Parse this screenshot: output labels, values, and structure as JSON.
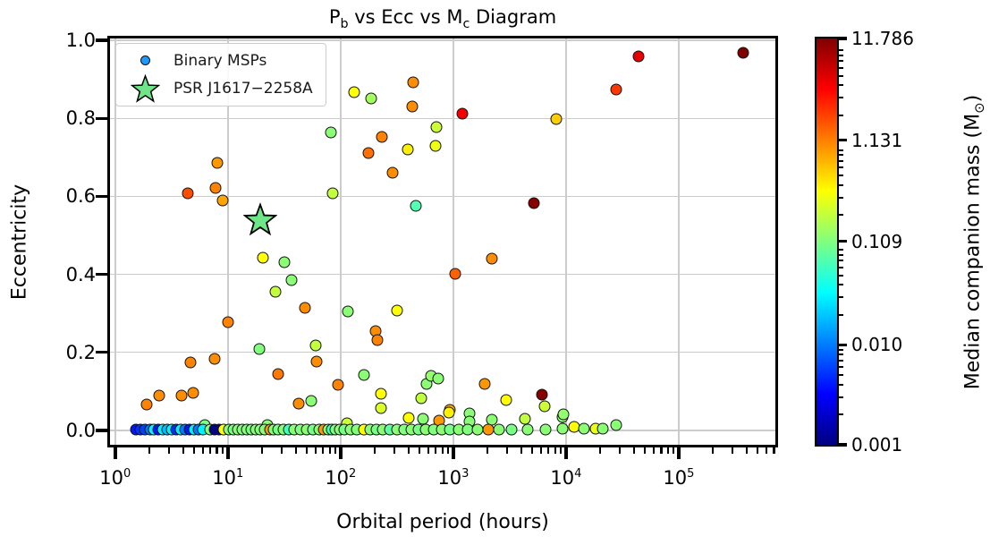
{
  "figure": {
    "background": "#ffffff"
  },
  "chart_data": {
    "type": "scatter",
    "title_parts": [
      "P",
      "b",
      " vs Ecc vs M",
      "c",
      " Diagram"
    ],
    "title_plain": "P_b vs Ecc vs M_c Diagram",
    "xlabel": "Orbital period (hours)",
    "ylabel": "Eccentricity",
    "x_scale": "log",
    "xlim": [
      0.9,
      720000
    ],
    "ylim": [
      -0.037,
      1.005
    ],
    "x_tick_exponents": [
      0,
      1,
      2,
      3,
      4,
      5
    ],
    "y_ticks": [
      0.0,
      0.2,
      0.4,
      0.6,
      0.8,
      1.0
    ],
    "grid": true,
    "legend": {
      "position": "upper-left",
      "items": [
        {
          "label": "Binary MSPs",
          "marker": "circle",
          "color": "#1e9aff"
        },
        {
          "label": "PSR J1617−2258A",
          "marker": "star",
          "color": "#6ee687"
        }
      ]
    },
    "colorbar": {
      "label_prefix": "Median companion mass (M",
      "label_sub": "⊙",
      "label_suffix": ")",
      "scale": "log",
      "vmin": 0.001,
      "vmax": 11.786,
      "tick_values": [
        11.786,
        1.131,
        0.109,
        0.01,
        0.001
      ],
      "tick_labels": [
        "11.786",
        "1.131",
        "0.109",
        "0.010",
        "0.001"
      ],
      "colormap": "jet",
      "jet_stops": [
        [
          0.0,
          [
            0,
            0,
            128
          ]
        ],
        [
          0.125,
          [
            0,
            0,
            255
          ]
        ],
        [
          0.375,
          [
            0,
            255,
            255
          ]
        ],
        [
          0.625,
          [
            255,
            255,
            0
          ]
        ],
        [
          0.875,
          [
            255,
            0,
            0
          ]
        ],
        [
          1.0,
          [
            128,
            0,
            0
          ]
        ]
      ]
    },
    "star": {
      "label": "PSR J1617−2258A",
      "p_hours": 19.3,
      "ecc": 0.541,
      "color": "#6ee687"
    },
    "points_format": [
      "orbital_period_hours",
      "eccentricity",
      "median_companion_mass_msun"
    ],
    "points": [
      [
        440,
        0.892,
        1.0
      ],
      [
        131,
        0.867,
        0.35
      ],
      [
        186,
        0.851,
        0.15
      ],
      [
        434,
        0.83,
        1.0
      ],
      [
        1200,
        0.812,
        4.0
      ],
      [
        8180,
        0.798,
        0.55
      ],
      [
        706,
        0.778,
        0.22
      ],
      [
        82,
        0.764,
        0.12
      ],
      [
        232,
        0.752,
        1.1
      ],
      [
        394,
        0.72,
        0.4
      ],
      [
        693,
        0.729,
        0.3
      ],
      [
        176,
        0.711,
        1.3
      ],
      [
        288,
        0.661,
        1.0
      ],
      [
        8.0,
        0.686,
        0.9
      ],
      [
        7.8,
        0.622,
        1.1
      ],
      [
        4.4,
        0.608,
        1.8
      ],
      [
        9.0,
        0.589,
        0.8
      ],
      [
        85,
        0.608,
        0.2
      ],
      [
        464,
        0.576,
        0.07
      ],
      [
        5180,
        0.583,
        11.0
      ],
      [
        43900,
        0.959,
        4.5
      ],
      [
        372000,
        0.968,
        11.8
      ],
      [
        27800,
        0.874,
        2.2
      ],
      [
        20.4,
        0.443,
        0.35
      ],
      [
        31.6,
        0.431,
        0.12
      ],
      [
        2190,
        0.44,
        1.0
      ],
      [
        1040,
        0.401,
        1.5
      ],
      [
        36.6,
        0.385,
        0.12
      ],
      [
        26.3,
        0.356,
        0.2
      ],
      [
        48.2,
        0.314,
        1.0
      ],
      [
        116,
        0.305,
        0.12
      ],
      [
        316,
        0.307,
        0.35
      ],
      [
        10.0,
        0.278,
        1.1
      ],
      [
        204,
        0.255,
        1.0
      ],
      [
        213,
        0.232,
        1.1
      ],
      [
        19.0,
        0.209,
        0.11
      ],
      [
        60,
        0.218,
        0.2
      ],
      [
        4.7,
        0.174,
        1.1
      ],
      [
        7.6,
        0.183,
        1.0
      ],
      [
        61,
        0.177,
        1.0
      ],
      [
        27.8,
        0.144,
        1.2
      ],
      [
        160,
        0.142,
        0.12
      ],
      [
        2.45,
        0.089,
        1.0
      ],
      [
        3.9,
        0.089,
        1.0
      ],
      [
        4.9,
        0.096,
        1.0
      ],
      [
        1.9,
        0.067,
        1.1
      ],
      [
        42.4,
        0.069,
        1.0
      ],
      [
        54.7,
        0.076,
        0.12
      ],
      [
        94.9,
        0.117,
        1.1
      ],
      [
        228,
        0.094,
        0.35
      ],
      [
        228,
        0.057,
        0.25
      ],
      [
        518,
        0.083,
        0.2
      ],
      [
        577,
        0.119,
        0.12
      ],
      [
        636,
        0.14,
        0.13
      ],
      [
        735,
        0.133,
        0.12
      ],
      [
        1900,
        0.119,
        0.9
      ],
      [
        2950,
        0.078,
        0.35
      ],
      [
        6130,
        0.092,
        11.0
      ],
      [
        6430,
        0.062,
        0.22
      ],
      [
        9310,
        0.034,
        0.12
      ],
      [
        27800,
        0.014,
        0.12
      ],
      [
        930,
        0.053,
        0.8
      ],
      [
        1400,
        0.044,
        0.12
      ],
      [
        538,
        0.03,
        0.12
      ],
      [
        4320,
        0.03,
        0.2
      ],
      [
        2190,
        0.027,
        0.12
      ],
      [
        748,
        0.025,
        0.9
      ],
      [
        1400,
        0.023,
        0.12
      ],
      [
        9500,
        0.041,
        0.13
      ],
      [
        400,
        0.032,
        0.35
      ],
      [
        910,
        0.046,
        0.4
      ],
      [
        114,
        0.018,
        0.22
      ],
      [
        6.2,
        0.013,
        0.11
      ],
      [
        22.3,
        0.013,
        0.12
      ],
      [
        11750,
        0.009,
        0.35
      ],
      [
        14400,
        0.005,
        0.12
      ],
      [
        18300,
        0.005,
        0.3
      ],
      [
        21100,
        0.005,
        0.12
      ],
      [
        9310,
        0.005,
        0.12
      ],
      [
        1.52,
        0.002,
        0.004
      ],
      [
        1.67,
        0.002,
        0.005
      ],
      [
        1.83,
        0.002,
        0.006
      ],
      [
        2.04,
        0.002,
        0.01
      ],
      [
        2.19,
        0.002,
        0.03
      ],
      [
        2.4,
        0.002,
        0.004
      ],
      [
        2.63,
        0.002,
        0.03
      ],
      [
        2.89,
        0.002,
        0.018
      ],
      [
        3.16,
        0.002,
        0.03
      ],
      [
        3.47,
        0.002,
        0.005
      ],
      [
        3.8,
        0.002,
        0.03
      ],
      [
        4.16,
        0.002,
        0.01
      ],
      [
        4.56,
        0.002,
        0.004
      ],
      [
        5.0,
        0.002,
        0.03
      ],
      [
        5.47,
        0.002,
        0.01
      ],
      [
        6.0,
        0.002,
        0.03
      ],
      [
        6.94,
        0.002,
        0.12
      ],
      [
        7.61,
        0.002,
        0.0012
      ],
      [
        8.32,
        0.002,
        0.0012
      ],
      [
        9.11,
        0.002,
        0.35
      ],
      [
        10.2,
        0.002,
        0.12
      ],
      [
        11.2,
        0.002,
        0.1
      ],
      [
        12.2,
        0.002,
        0.12
      ],
      [
        13.4,
        0.002,
        0.11
      ],
      [
        14.7,
        0.002,
        0.12
      ],
      [
        16.1,
        0.002,
        0.1
      ],
      [
        17.6,
        0.002,
        0.12
      ],
      [
        19.3,
        0.002,
        0.11
      ],
      [
        21.1,
        0.002,
        0.12
      ],
      [
        23.7,
        0.002,
        0.9
      ],
      [
        25.4,
        0.002,
        0.12
      ],
      [
        27.8,
        0.002,
        0.1
      ],
      [
        31.0,
        0.002,
        0.12
      ],
      [
        34.6,
        0.002,
        0.06
      ],
      [
        38.7,
        0.002,
        0.12
      ],
      [
        44.0,
        0.002,
        0.11
      ],
      [
        50.1,
        0.002,
        0.12
      ],
      [
        56.8,
        0.002,
        0.1
      ],
      [
        64.6,
        0.002,
        0.12
      ],
      [
        70.8,
        0.002,
        0.9
      ],
      [
        77.6,
        0.002,
        0.12
      ],
      [
        83.6,
        0.002,
        0.06
      ],
      [
        89.6,
        0.002,
        0.11
      ],
      [
        98.4,
        0.002,
        0.12
      ],
      [
        107,
        0.002,
        0.1
      ],
      [
        122,
        0.002,
        0.12
      ],
      [
        139,
        0.002,
        0.11
      ],
      [
        160,
        0.002,
        0.35
      ],
      [
        182,
        0.002,
        0.12
      ],
      [
        208,
        0.002,
        0.1
      ],
      [
        236,
        0.002,
        0.12
      ],
      [
        273,
        0.002,
        0.08
      ],
      [
        316,
        0.002,
        0.12
      ],
      [
        365,
        0.002,
        0.11
      ],
      [
        422,
        0.002,
        0.12
      ],
      [
        490,
        0.002,
        0.1
      ],
      [
        567,
        0.002,
        0.12
      ],
      [
        672,
        0.002,
        0.11
      ],
      [
        789,
        0.002,
        0.12
      ],
      [
        930,
        0.002,
        0.1
      ],
      [
        1115,
        0.002,
        0.12
      ],
      [
        1342,
        0.002,
        0.11
      ],
      [
        1641,
        0.002,
        0.12
      ],
      [
        2042,
        0.002,
        0.9
      ],
      [
        2541,
        0.002,
        0.12
      ],
      [
        3301,
        0.002,
        0.1
      ],
      [
        4567,
        0.002,
        0.12
      ],
      [
        6601,
        0.002,
        0.12
      ]
    ]
  }
}
